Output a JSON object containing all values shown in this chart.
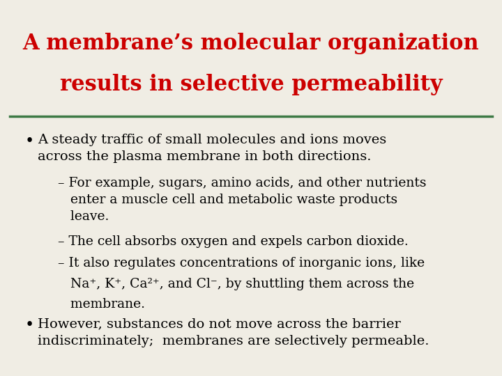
{
  "title_line1": "A membrane’s molecular organization",
  "title_line2": "results in selective permeability",
  "title_color": "#cc0000",
  "line_color": "#3d7a45",
  "bg_color": "#f0ede4",
  "body_color": "#000000",
  "title_fontsize": 22,
  "body_fontsize": 14,
  "sub_fontsize": 13.5,
  "bullet1_main": "A steady traffic of small molecules and ions moves\nacross the plasma membrane in both directions.",
  "sub1": "– For example, sugars, amino acids, and other nutrients\n   enter a muscle cell and metabolic waste products\n   leave.",
  "sub2": "– The cell absorbs oxygen and expels carbon dioxide.",
  "sub3_line1": "– It also regulates concentrations of inorganic ions, like",
  "sub3_line2": "   Na⁺, K⁺, Ca²⁺, and Cl⁻, by shuttling them across the",
  "sub3_line3": "   membrane.",
  "bullet2_main": "However, substances do not move across the barrier\nindiscriminately;  membranes are selectively permeable."
}
